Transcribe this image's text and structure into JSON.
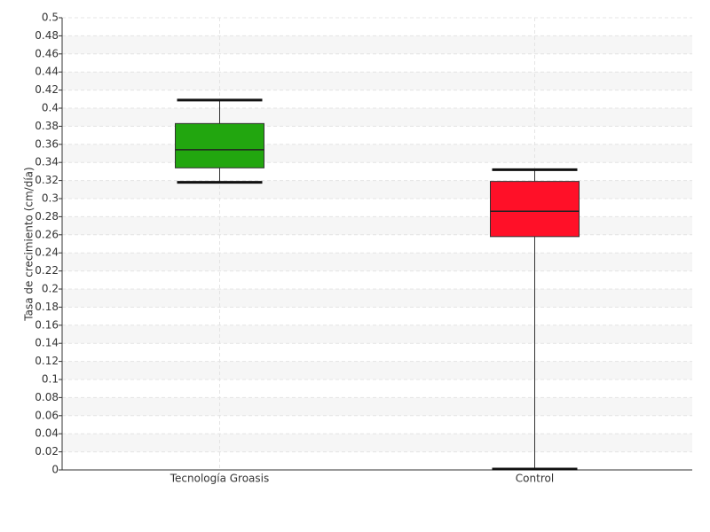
{
  "chart_data": {
    "type": "box",
    "ylabel": "Tasa de crecimiento (cm/día)",
    "categories": [
      "Tecnología Groasis",
      "Control"
    ],
    "boxes": [
      {
        "whislo": 0.318,
        "q1": 0.334,
        "med": 0.354,
        "q3": 0.383,
        "whishi": 0.409,
        "color": "#22a60f"
      },
      {
        "whislo": 0.001,
        "q1": 0.258,
        "med": 0.286,
        "q3": 0.319,
        "whishi": 0.332,
        "color": "#ff1028"
      }
    ],
    "ylim": [
      0,
      0.5
    ],
    "yticks": [
      0,
      0.02,
      0.04,
      0.06,
      0.08,
      0.1,
      0.12,
      0.14,
      0.16,
      0.18,
      0.2,
      0.22,
      0.24,
      0.26,
      0.28,
      0.3,
      0.32,
      0.34,
      0.36,
      0.38,
      0.4,
      0.42,
      0.44,
      0.46,
      0.48,
      0.5
    ],
    "grid": true
  }
}
